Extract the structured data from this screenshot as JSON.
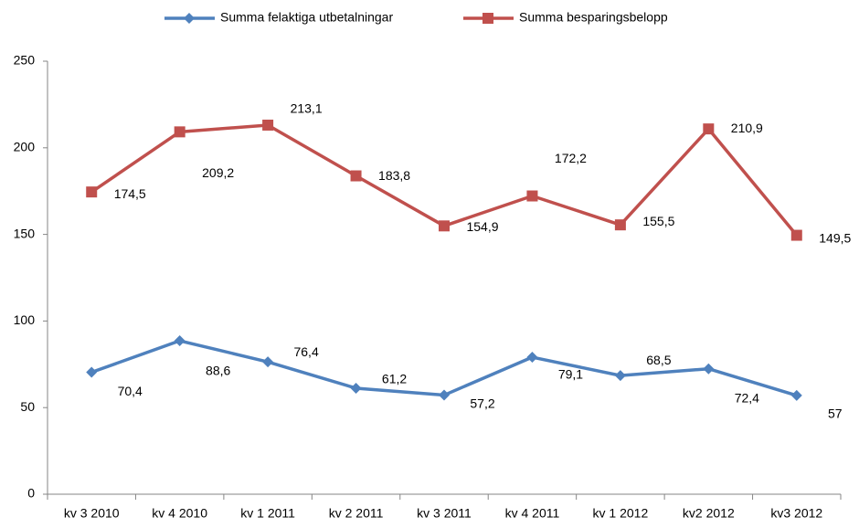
{
  "chart_data": {
    "type": "line",
    "categories": [
      "kv 3 2010",
      "kv 4 2010",
      "kv 1 2011",
      "kv 2 2011",
      "kv 3 2011",
      "kv 4 2011",
      "kv 1 2012",
      "kv2 2012",
      "kv3 2012"
    ],
    "series": [
      {
        "name": "Summa felaktiga utbetalningar",
        "color": "#4f81bd",
        "marker": "diamond",
        "values": [
          70.4,
          88.6,
          76.4,
          61.2,
          57.2,
          79.1,
          68.5,
          72.4,
          57
        ],
        "value_labels": [
          "70,4",
          "88,6",
          "76,4",
          "61,2",
          "57,2",
          "79,1",
          "68,5",
          "72,4",
          "57"
        ]
      },
      {
        "name": "Summa besparingsbelopp",
        "color": "#c0504d",
        "marker": "square",
        "values": [
          174.5,
          209.2,
          213.1,
          183.8,
          154.9,
          172.2,
          155.5,
          210.9,
          149.5
        ],
        "value_labels": [
          "174,5",
          "209,2",
          "213,1",
          "183,8",
          "154,9",
          "172,2",
          "155,5",
          "210,9",
          "149,5"
        ]
      }
    ],
    "ylim": [
      0,
      250
    ],
    "yticks": [
      0,
      50,
      100,
      150,
      200,
      250
    ],
    "grid": false,
    "legend": "top"
  }
}
